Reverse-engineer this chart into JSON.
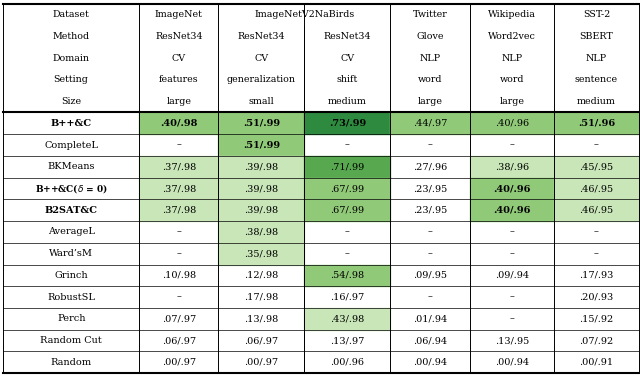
{
  "row_labels": [
    "B++&C",
    "CompleteL",
    "BKMeans",
    "B++&C_delta",
    "B2SAT&C",
    "AverageL",
    "Ward’sM",
    "Grinch",
    "RobustSL",
    "Perch",
    "Random Cut",
    "Random"
  ],
  "row_labels_bold": [
    true,
    false,
    false,
    true,
    true,
    false,
    false,
    false,
    false,
    false,
    false,
    false
  ],
  "data": [
    [
      ".40/.98",
      ".51/.99",
      ".73/.99",
      ".44/.97",
      ".40/.96",
      ".51/.96"
    ],
    [
      "–",
      ".51/.99",
      "–",
      "–",
      "–",
      "–"
    ],
    [
      ".37/.98",
      ".39/.98",
      ".71/.99",
      ".27/.96",
      ".38/.96",
      ".45/.95"
    ],
    [
      ".37/.98",
      ".39/.98",
      ".67/.99",
      ".23/.95",
      ".40/.96",
      ".46/.95"
    ],
    [
      ".37/.98",
      ".39/.98",
      ".67/.99",
      ".23/.95",
      ".40/.96",
      ".46/.95"
    ],
    [
      "–",
      ".38/.98",
      "–",
      "–",
      "–",
      "–"
    ],
    [
      "–",
      ".35/.98",
      "–",
      "–",
      "–",
      "–"
    ],
    [
      ".10/.98",
      ".12/.98",
      ".54/.98",
      ".09/.95",
      ".09/.94",
      ".17/.93"
    ],
    [
      "–",
      ".17/.98",
      ".16/.97",
      "–",
      "–",
      ".20/.93"
    ],
    [
      ".07/.97",
      ".13/.98",
      ".43/.98",
      ".01/.94",
      "–",
      ".15/.92"
    ],
    [
      ".06/.97",
      ".06/.97",
      ".13/.97",
      ".06/.94",
      ".13/.95",
      ".07/.92"
    ],
    [
      ".00/.97",
      ".00/.97",
      ".00/.96",
      ".00/.94",
      ".00/.94",
      ".00/.91"
    ]
  ],
  "cell_colors": [
    [
      "#90c978",
      "#90c978",
      "#2d8a3e",
      "#90c978",
      "#90c978",
      "#90c978"
    ],
    [
      "#ffffff",
      "#90c978",
      "#ffffff",
      "#ffffff",
      "#ffffff",
      "#ffffff"
    ],
    [
      "#c8e6b8",
      "#c8e6b8",
      "#57a84f",
      "#ffffff",
      "#c8e6b8",
      "#c8e6b8"
    ],
    [
      "#c8e6b8",
      "#c8e6b8",
      "#90c978",
      "#ffffff",
      "#90c978",
      "#c8e6b8"
    ],
    [
      "#c8e6b8",
      "#c8e6b8",
      "#90c978",
      "#ffffff",
      "#90c978",
      "#c8e6b8"
    ],
    [
      "#ffffff",
      "#c8e6b8",
      "#ffffff",
      "#ffffff",
      "#ffffff",
      "#ffffff"
    ],
    [
      "#ffffff",
      "#c8e6b8",
      "#ffffff",
      "#ffffff",
      "#ffffff",
      "#ffffff"
    ],
    [
      "#ffffff",
      "#ffffff",
      "#90c978",
      "#ffffff",
      "#ffffff",
      "#ffffff"
    ],
    [
      "#ffffff",
      "#ffffff",
      "#ffffff",
      "#ffffff",
      "#ffffff",
      "#ffffff"
    ],
    [
      "#ffffff",
      "#ffffff",
      "#c8e6b8",
      "#ffffff",
      "#ffffff",
      "#ffffff"
    ],
    [
      "#ffffff",
      "#ffffff",
      "#ffffff",
      "#ffffff",
      "#ffffff",
      "#ffffff"
    ],
    [
      "#ffffff",
      "#ffffff",
      "#ffffff",
      "#ffffff",
      "#ffffff",
      "#ffffff"
    ]
  ],
  "cell_bold": [
    [
      true,
      true,
      true,
      false,
      false,
      true
    ],
    [
      false,
      true,
      false,
      false,
      false,
      false
    ],
    [
      false,
      false,
      false,
      false,
      false,
      false
    ],
    [
      false,
      false,
      false,
      false,
      true,
      false
    ],
    [
      false,
      false,
      false,
      false,
      true,
      false
    ],
    [
      false,
      false,
      false,
      false,
      false,
      false
    ],
    [
      false,
      false,
      false,
      false,
      false,
      false
    ],
    [
      false,
      false,
      false,
      false,
      false,
      false
    ],
    [
      false,
      false,
      false,
      false,
      false,
      false
    ],
    [
      false,
      false,
      false,
      false,
      false,
      false
    ],
    [
      false,
      false,
      false,
      false,
      false,
      false
    ],
    [
      false,
      false,
      false,
      false,
      false,
      false
    ]
  ],
  "bg_color": "#ffffff",
  "header_lines": [
    [
      "Dataset",
      "ImageNet",
      "ImageNetV2NaBirds",
      "",
      "Twitter",
      "Wikipedia",
      "SST-2"
    ],
    [
      "Method",
      "ResNet34",
      "ResNet34  ResNet34",
      "",
      "Glove",
      "Word2vec",
      "SBERT"
    ],
    [
      "Domain",
      "CV",
      "CV",
      "CV",
      "NLP",
      "NLP",
      "NLP"
    ],
    [
      "Setting",
      "features",
      "generalization",
      "shift",
      "word",
      "word",
      "sentence"
    ],
    [
      "Size",
      "large",
      "small",
      "medium",
      "large",
      "large",
      "medium"
    ]
  ]
}
